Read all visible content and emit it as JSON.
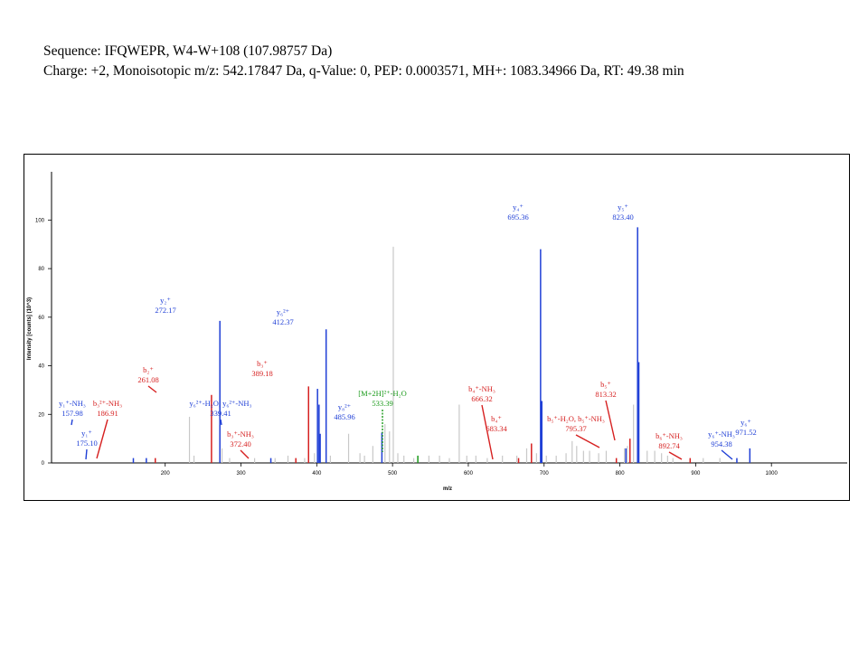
{
  "header": {
    "line1": "Sequence: IFQWEPR, W4-W+108 (107.98757 Da)",
    "line2": "Charge: +2, Monoisotopic m/z: 542.17847 Da, q-Value: 0, PEP: 0.0003571, MH+: 1083.34966 Da, RT: 49.38 min"
  },
  "colors": {
    "b": "#d62020",
    "y": "#1f3fd6",
    "precursor": "#1a9a1a",
    "noise": "#c8c8c8",
    "axis": "#000000"
  },
  "chart_data": {
    "type": "bar",
    "xlabel": "m/z",
    "ylabel": "Intensity [counts] (10^3)",
    "xlim": [
      50,
      1100
    ],
    "ylim": [
      0,
      118
    ],
    "xticks": [
      200,
      300,
      400,
      500,
      600,
      700,
      800,
      900,
      1000
    ],
    "yticks": [
      0,
      20,
      40,
      60,
      80,
      100
    ],
    "grid": false,
    "noise_peaks": [
      {
        "mz": 232,
        "i": 19
      },
      {
        "mz": 238,
        "i": 3
      },
      {
        "mz": 275,
        "i": 6
      },
      {
        "mz": 285,
        "i": 2
      },
      {
        "mz": 318,
        "i": 2
      },
      {
        "mz": 345,
        "i": 2
      },
      {
        "mz": 362,
        "i": 3
      },
      {
        "mz": 384,
        "i": 2
      },
      {
        "mz": 397,
        "i": 4
      },
      {
        "mz": 418,
        "i": 3
      },
      {
        "mz": 442,
        "i": 12
      },
      {
        "mz": 457,
        "i": 4
      },
      {
        "mz": 463,
        "i": 3
      },
      {
        "mz": 474,
        "i": 7
      },
      {
        "mz": 490,
        "i": 16
      },
      {
        "mz": 496,
        "i": 13
      },
      {
        "mz": 501,
        "i": 89
      },
      {
        "mz": 507,
        "i": 4
      },
      {
        "mz": 515,
        "i": 3
      },
      {
        "mz": 528,
        "i": 2
      },
      {
        "mz": 548,
        "i": 3
      },
      {
        "mz": 562,
        "i": 3
      },
      {
        "mz": 575,
        "i": 2
      },
      {
        "mz": 588,
        "i": 24
      },
      {
        "mz": 598,
        "i": 3
      },
      {
        "mz": 610,
        "i": 3
      },
      {
        "mz": 625,
        "i": 2
      },
      {
        "mz": 645,
        "i": 3
      },
      {
        "mz": 664,
        "i": 3
      },
      {
        "mz": 677,
        "i": 6
      },
      {
        "mz": 690,
        "i": 4
      },
      {
        "mz": 703,
        "i": 3
      },
      {
        "mz": 716,
        "i": 3
      },
      {
        "mz": 729,
        "i": 4
      },
      {
        "mz": 737,
        "i": 9
      },
      {
        "mz": 743,
        "i": 7
      },
      {
        "mz": 752,
        "i": 5
      },
      {
        "mz": 760,
        "i": 5
      },
      {
        "mz": 772,
        "i": 4
      },
      {
        "mz": 782,
        "i": 5
      },
      {
        "mz": 806,
        "i": 6
      },
      {
        "mz": 810,
        "i": 7
      },
      {
        "mz": 818,
        "i": 24
      },
      {
        "mz": 836,
        "i": 5
      },
      {
        "mz": 846,
        "i": 5
      },
      {
        "mz": 855,
        "i": 4
      },
      {
        "mz": 863,
        "i": 3
      },
      {
        "mz": 870,
        "i": 2
      },
      {
        "mz": 910,
        "i": 2
      },
      {
        "mz": 932,
        "i": 2
      }
    ],
    "annotated_peaks": [
      {
        "mz": 157.98,
        "i": 2,
        "type": "y",
        "lines": [
          "y₁⁺-NH₃",
          "157.98"
        ]
      },
      {
        "mz": 175.1,
        "i": 2,
        "type": "y",
        "lines": [
          "y₁⁺",
          "175.10"
        ]
      },
      {
        "mz": 186.91,
        "i": 2,
        "type": "b",
        "lines": [
          "b₃²⁺-NH₃",
          "186.91"
        ]
      },
      {
        "mz": 261.08,
        "i": 28,
        "type": "b",
        "lines": [
          "b₂⁺",
          "261.08"
        ]
      },
      {
        "mz": 272.17,
        "i": 58.5,
        "type": "y",
        "lines": [
          "y₂⁺",
          "272.17"
        ]
      },
      {
        "mz": 339.41,
        "i": 2,
        "type": "y",
        "lines": [
          "y₆²⁺-H₂O, y₆²⁺-NH₃",
          "339.41"
        ]
      },
      {
        "mz": 372.4,
        "i": 2,
        "type": "b",
        "lines": [
          "b₃⁺-NH₃",
          "372.40"
        ]
      },
      {
        "mz": 389.18,
        "i": 31.5,
        "type": "b",
        "lines": [
          "b₃⁺",
          "389.18"
        ]
      },
      {
        "mz": 401.0,
        "i": 30.5,
        "type": "y",
        "lines": []
      },
      {
        "mz": 403.0,
        "i": 24,
        "type": "y",
        "lines": []
      },
      {
        "mz": 404.5,
        "i": 12,
        "type": "y",
        "lines": []
      },
      {
        "mz": 412.37,
        "i": 55,
        "type": "y",
        "lines": [
          "y₆²⁺",
          "412.37"
        ]
      },
      {
        "mz": 485.96,
        "i": 12.5,
        "type": "y",
        "lines": [
          "y₈²⁺",
          "485.96"
        ]
      },
      {
        "mz": 533.39,
        "i": 3,
        "type": "precursor",
        "lines": [
          "[M+2H]²⁺-H₂O",
          "533.39"
        ]
      },
      {
        "mz": 666.32,
        "i": 2,
        "type": "b",
        "lines": [
          "b₄⁺-NH₃",
          "666.32"
        ]
      },
      {
        "mz": 683.34,
        "i": 8,
        "type": "b",
        "lines": [
          "b₄⁺",
          "683.34"
        ]
      },
      {
        "mz": 695.36,
        "i": 88,
        "type": "y",
        "lines": [
          "y₄⁺",
          "695.36"
        ]
      },
      {
        "mz": 697.0,
        "i": 25.5,
        "type": "y",
        "lines": []
      },
      {
        "mz": 795.37,
        "i": 2,
        "type": "b",
        "lines": [
          "b₅⁺-H₂O, b₅⁺-NH₃",
          "795.37"
        ]
      },
      {
        "mz": 808.0,
        "i": 6,
        "type": "y",
        "lines": []
      },
      {
        "mz": 813.32,
        "i": 10,
        "type": "b",
        "lines": [
          "b₅⁺",
          "813.32"
        ]
      },
      {
        "mz": 823.4,
        "i": 97,
        "type": "y",
        "lines": [
          "y₅⁺",
          "823.40"
        ]
      },
      {
        "mz": 825.0,
        "i": 41.5,
        "type": "y",
        "lines": []
      },
      {
        "mz": 892.74,
        "i": 2,
        "type": "b",
        "lines": [
          "b₆⁺-NH₃",
          "892.74"
        ]
      },
      {
        "mz": 954.38,
        "i": 2,
        "type": "y",
        "lines": [
          "y₆⁺-NH₃",
          "954.38"
        ]
      },
      {
        "mz": 971.52,
        "i": 6,
        "type": "y",
        "lines": [
          "y₆⁺",
          "971.52"
        ]
      }
    ]
  }
}
